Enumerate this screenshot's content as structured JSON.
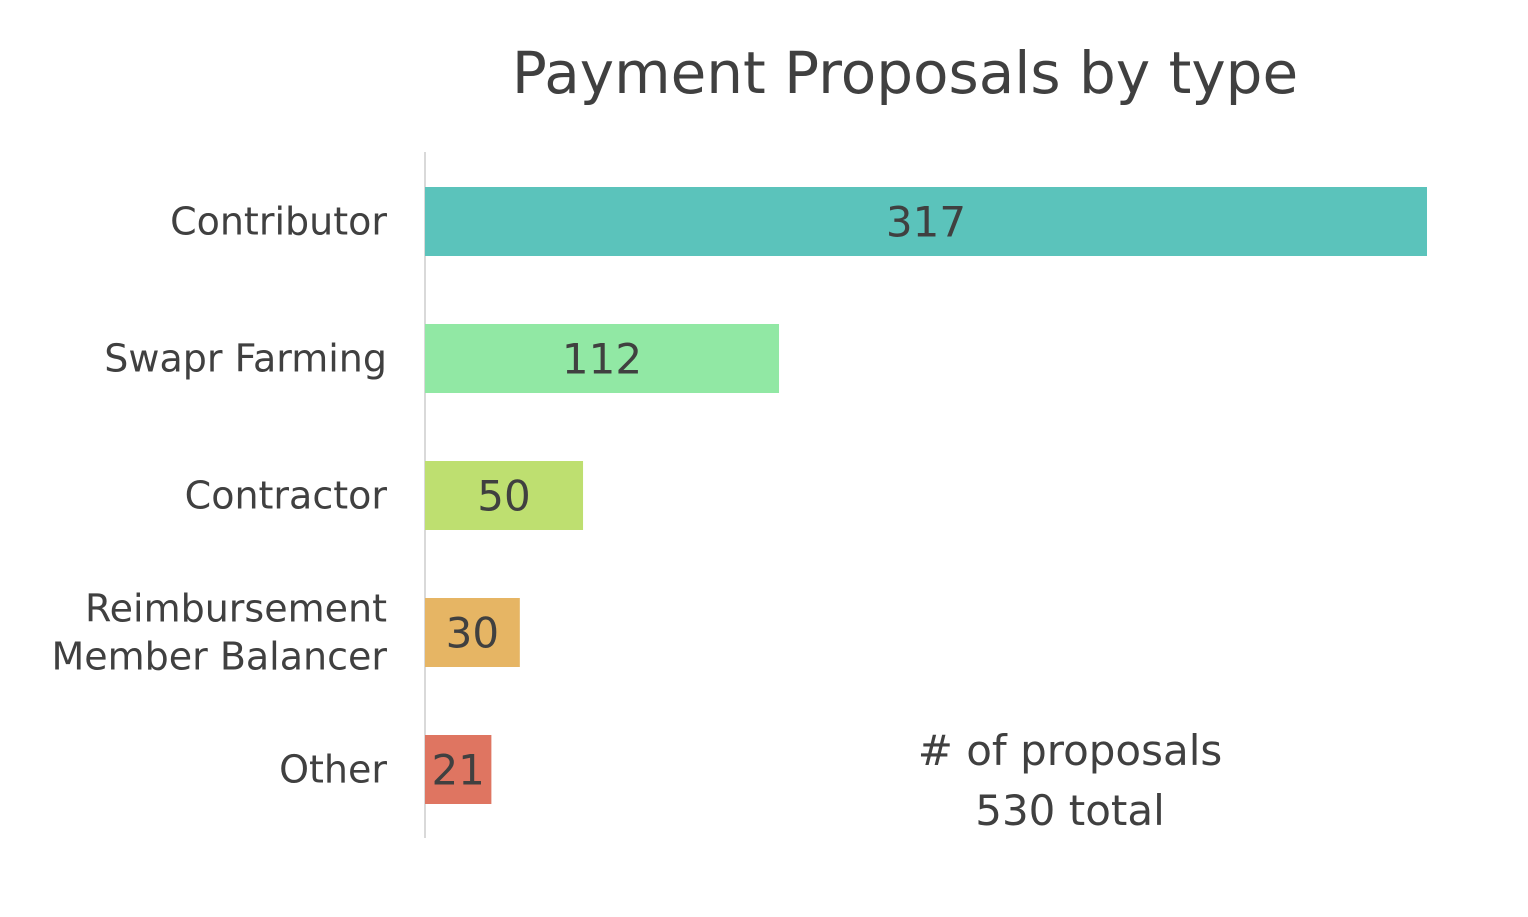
{
  "chart_data": {
    "type": "bar",
    "orientation": "horizontal",
    "title": "Payment Proposals by type",
    "categories": [
      [
        "Contributor"
      ],
      [
        "Swapr Farming"
      ],
      [
        "Contractor"
      ],
      [
        "Reimbursement",
        "Member Balancer"
      ],
      [
        "Other"
      ]
    ],
    "values": [
      317,
      112,
      50,
      30,
      21
    ],
    "colors": [
      "#5bc3bb",
      "#91e8a4",
      "#bedf70",
      "#e6b564",
      "#df7561"
    ],
    "xlim": [
      0,
      317
    ],
    "grid": false,
    "legend": "none",
    "annotation": {
      "line1": "# of proposals",
      "line2": "530 total"
    }
  }
}
